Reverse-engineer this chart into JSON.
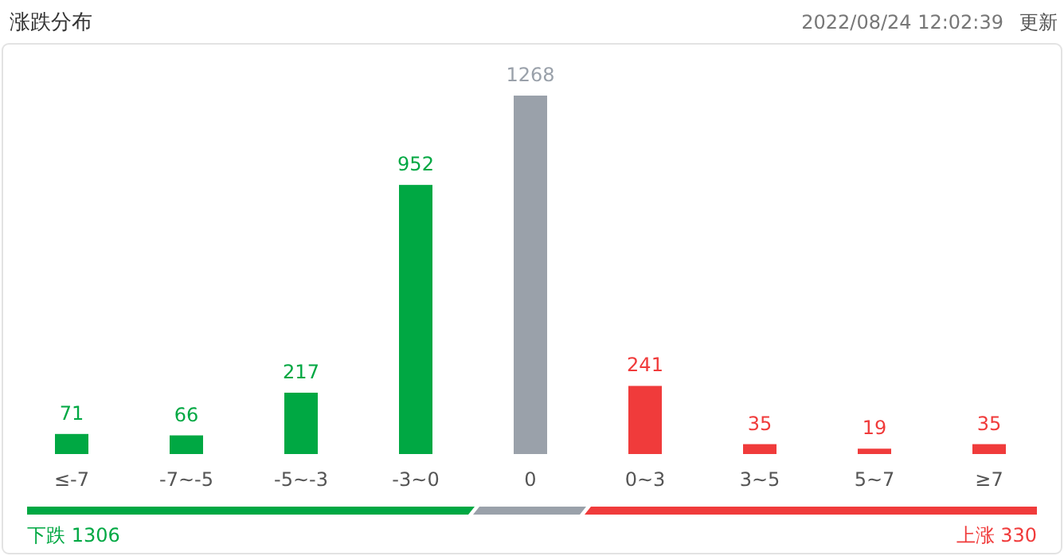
{
  "chart_data": {
    "type": "bar",
    "title": "涨跌分布",
    "subtitle": "2022/08/24 12:02:39",
    "annotations": [
      "更新",
      "下跌 1306",
      "上涨 330"
    ],
    "categories": [
      "≤-7",
      "-7~-5",
      "-5~-3",
      "-3~0",
      "0",
      "0~3",
      "3~5",
      "5~7",
      "≥7"
    ],
    "values": [
      71,
      66,
      217,
      952,
      1268,
      241,
      35,
      19,
      35
    ],
    "colors": [
      "#00a843",
      "#00a843",
      "#00a843",
      "#00a843",
      "#9aa1aa",
      "#f03b3b",
      "#f03b3b",
      "#f03b3b",
      "#f03b3b"
    ],
    "data_labels": true
  }
}
